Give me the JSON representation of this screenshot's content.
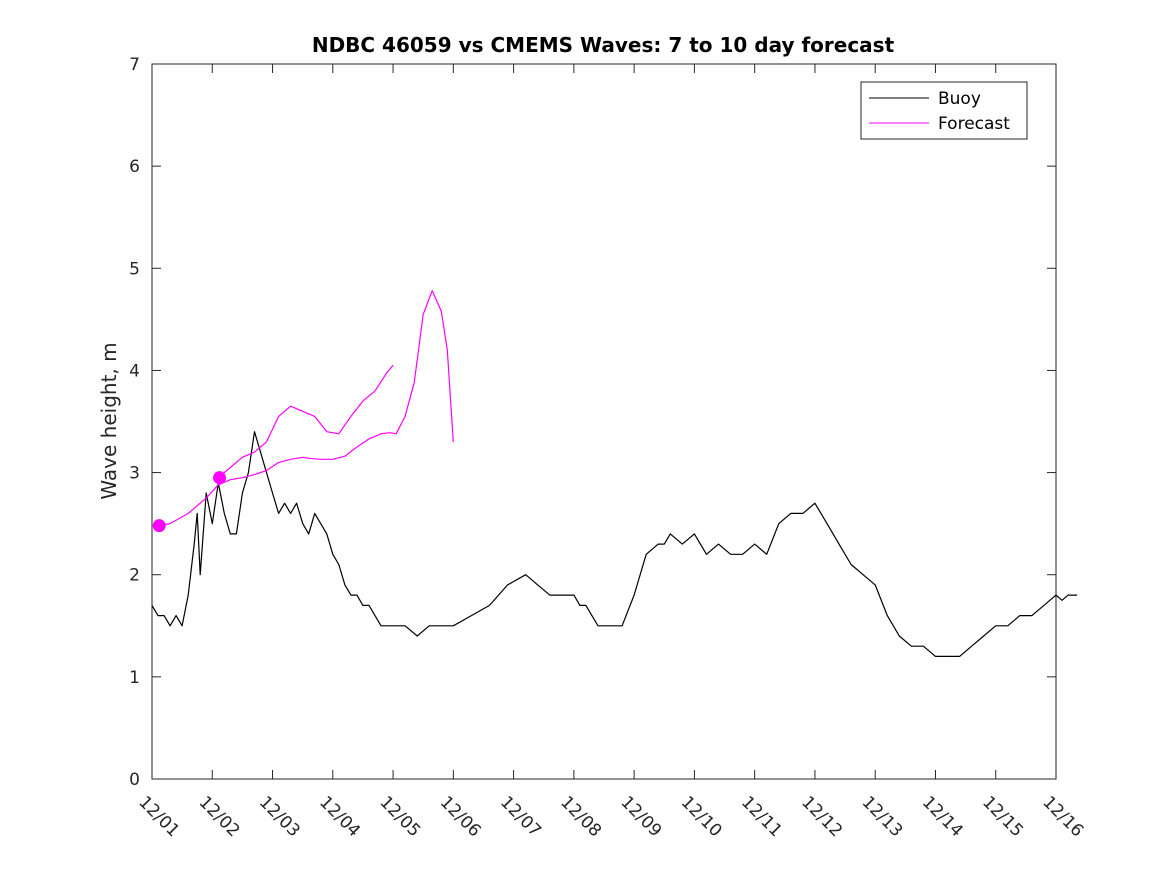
{
  "chart_data": {
    "type": "line",
    "title": "NDBC 46059 vs CMEMS Waves: 7 to 10 day forecast",
    "xlabel": "",
    "ylabel": "Wave height, m",
    "xlim": [
      0,
      15
    ],
    "ylim": [
      0,
      7
    ],
    "x_ticks": [
      0,
      1,
      2,
      3,
      4,
      5,
      6,
      7,
      8,
      9,
      10,
      11,
      12,
      13,
      14,
      15
    ],
    "x_tick_labels": [
      "12/01",
      "12/02",
      "12/03",
      "12/04",
      "12/05",
      "12/06",
      "12/07",
      "12/08",
      "12/09",
      "12/10",
      "12/11",
      "12/12",
      "12/13",
      "12/14",
      "12/15",
      "12/16"
    ],
    "y_ticks": [
      0,
      1,
      2,
      3,
      4,
      5,
      6,
      7
    ],
    "y_tick_labels": [
      "0",
      "1",
      "2",
      "3",
      "4",
      "5",
      "6",
      "7"
    ],
    "grid": false,
    "legend_position": "top-right",
    "colors": {
      "buoy": "#000000",
      "forecast": "#ff00ff",
      "axes": "#262626"
    },
    "legend": [
      {
        "name": "Buoy",
        "color": "#000000"
      },
      {
        "name": "Forecast",
        "color": "#ff00ff"
      }
    ],
    "series": [
      {
        "name": "Buoy",
        "color": "#000000",
        "x": [
          0.0,
          0.1,
          0.2,
          0.3,
          0.4,
          0.5,
          0.6,
          0.7,
          0.75,
          0.8,
          0.9,
          1.0,
          1.1,
          1.2,
          1.3,
          1.4,
          1.5,
          1.6,
          1.7,
          1.8,
          1.9,
          2.0,
          2.1,
          2.2,
          2.3,
          2.4,
          2.5,
          2.6,
          2.7,
          2.8,
          2.9,
          3.0,
          3.1,
          3.2,
          3.3,
          3.4,
          3.5,
          3.6,
          3.7,
          3.8,
          3.9,
          4.0,
          4.2,
          4.4,
          4.6,
          4.8,
          5.0,
          5.3,
          5.6,
          5.9,
          6.2,
          6.4,
          6.6,
          6.8,
          7.0,
          7.1,
          7.2,
          7.3,
          7.4,
          7.6,
          7.8,
          8.0,
          8.2,
          8.4,
          8.5,
          8.6,
          8.8,
          9.0,
          9.1,
          9.2,
          9.4,
          9.6,
          9.8,
          10.0,
          10.2,
          10.4,
          10.6,
          10.8,
          11.0,
          11.2,
          11.4,
          11.6,
          11.8,
          12.0,
          12.2,
          12.4,
          12.6,
          12.8,
          13.0,
          13.2,
          13.4,
          13.6,
          13.8,
          14.0,
          14.2,
          14.4,
          14.6,
          14.8,
          15.0,
          15.1,
          15.2,
          15.35
        ],
        "y": [
          1.7,
          1.6,
          1.6,
          1.5,
          1.6,
          1.5,
          1.8,
          2.3,
          2.6,
          2.0,
          2.8,
          2.5,
          2.9,
          2.6,
          2.4,
          2.4,
          2.8,
          3.0,
          3.4,
          3.2,
          3.0,
          2.8,
          2.6,
          2.7,
          2.6,
          2.7,
          2.5,
          2.4,
          2.6,
          2.5,
          2.4,
          2.2,
          2.1,
          1.9,
          1.8,
          1.8,
          1.7,
          1.7,
          1.6,
          1.5,
          1.5,
          1.5,
          1.5,
          1.4,
          1.5,
          1.5,
          1.5,
          1.6,
          1.7,
          1.9,
          2.0,
          1.9,
          1.8,
          1.8,
          1.8,
          1.7,
          1.7,
          1.6,
          1.5,
          1.5,
          1.5,
          1.8,
          2.2,
          2.3,
          2.3,
          2.4,
          2.3,
          2.4,
          2.3,
          2.2,
          2.3,
          2.2,
          2.2,
          2.3,
          2.2,
          2.5,
          2.6,
          2.6,
          2.7,
          2.5,
          2.3,
          2.1,
          2.0,
          1.9,
          1.6,
          1.4,
          1.3,
          1.3,
          1.2,
          1.2,
          1.2,
          1.3,
          1.4,
          1.5,
          1.5,
          1.6,
          1.6,
          1.7,
          1.8,
          1.75,
          1.8,
          1.8
        ]
      },
      {
        "name": "Forecast",
        "color": "#ff00ff",
        "x": [
          0.1,
          0.3,
          0.6,
          0.9,
          1.1,
          1.3,
          1.5,
          1.7,
          1.9,
          2.1,
          2.3,
          2.5,
          2.6,
          2.8,
          3.0,
          3.2,
          3.4,
          3.6,
          3.8,
          3.95,
          4.05,
          4.2,
          4.35,
          4.5,
          4.65,
          4.8,
          4.9,
          5.0
        ],
        "y": [
          2.48,
          2.5,
          2.6,
          2.75,
          2.88,
          2.93,
          2.95,
          2.98,
          3.02,
          3.1,
          3.13,
          3.15,
          3.14,
          3.13,
          3.13,
          3.16,
          3.25,
          3.33,
          3.38,
          3.39,
          3.38,
          3.55,
          3.88,
          4.55,
          4.78,
          4.58,
          4.2,
          3.3
        ]
      },
      {
        "name": "Forecast",
        "color": "#ff00ff",
        "x": [
          1.1,
          1.3,
          1.5,
          1.7,
          1.9,
          2.1,
          2.3,
          2.5,
          2.7,
          2.9,
          3.1,
          3.3,
          3.5,
          3.7,
          3.9,
          4.0
        ],
        "y": [
          2.95,
          3.05,
          3.15,
          3.2,
          3.3,
          3.55,
          3.65,
          3.6,
          3.55,
          3.4,
          3.38,
          3.55,
          3.7,
          3.8,
          3.98,
          4.05
        ]
      }
    ],
    "markers": [
      {
        "name": "Forecast start",
        "x": 0.12,
        "y": 2.48,
        "color": "#ff00ff"
      },
      {
        "name": "Forecast start",
        "x": 1.12,
        "y": 2.95,
        "color": "#ff00ff"
      }
    ]
  }
}
